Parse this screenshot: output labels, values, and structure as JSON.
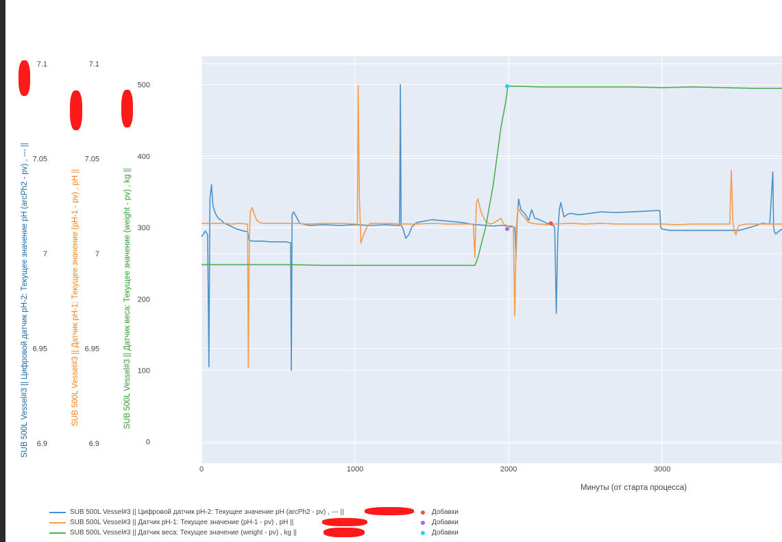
{
  "chart_data": {
    "type": "line",
    "xlabel": "Минуты (от старта процесса)",
    "xlim": [
      0,
      3780
    ],
    "x_ticks": [
      "0",
      "1000",
      "2000",
      "3000"
    ],
    "x_tick_values": [
      0,
      1000,
      2000,
      3000
    ],
    "axes": {
      "ph2": {
        "label": "SUB 500L Vessel#3 || Цифровой датчик pH-2: Текущее значение pH (arcPh2 - pv) , --- ||",
        "color": "#1f6aa5",
        "range": [
          6.9,
          7.1
        ],
        "ticks": [
          "7.1",
          "7.05",
          "7",
          "6.95",
          "6.9"
        ],
        "tick_values": [
          7.1,
          7.05,
          7.0,
          6.95,
          6.9
        ]
      },
      "ph1": {
        "label": "SUB 500L Vessel#3 || Датчик pH-1: Текущее значение (pH-1 - pv) , pH ||",
        "color": "#ff7f0e",
        "range": [
          6.9,
          7.1
        ],
        "ticks": [
          "7.1",
          "7.05",
          "7",
          "6.95",
          "6.9"
        ],
        "tick_values": [
          7.1,
          7.05,
          7.0,
          6.95,
          6.9
        ]
      },
      "weight": {
        "label": "SUB 500L Vessel#3 || Датчик веса: Текущее значение (weight - pv) , kg ||",
        "color": "#2ca02c",
        "range": [
          -30,
          540
        ],
        "ticks": [
          "500",
          "400",
          "300",
          "200",
          "100",
          "0"
        ],
        "tick_values": [
          500,
          400,
          300,
          200,
          100,
          0
        ]
      }
    },
    "series": [
      {
        "name": "SUB 500L Vessel#3 || Цифровой датчик pH-2: Текущее значение pH (arcPh2 - pv) , --- ||",
        "axis": "weight",
        "color": "#4b91c6",
        "x": [
          0,
          25,
          40,
          48,
          55,
          65,
          75,
          90,
          100,
          110,
          130,
          150,
          180,
          200,
          230,
          260,
          300,
          310,
          340,
          400,
          450,
          500,
          550,
          570,
          580,
          585,
          590,
          600,
          610,
          640,
          700,
          800,
          900,
          1000,
          1100,
          1200,
          1280,
          1290,
          1295,
          1300,
          1310,
          1330,
          1350,
          1370,
          1400,
          1500,
          1600,
          1700,
          1780,
          1800,
          1850,
          1900,
          1950,
          2000,
          2020,
          2040,
          2048,
          2055,
          2065,
          2080,
          2095,
          2110,
          2130,
          2150,
          2170,
          2190,
          2210,
          2230,
          2250,
          2270,
          2290,
          2300,
          2310,
          2320,
          2330,
          2340,
          2360,
          2380,
          2400,
          2450,
          2500,
          2600,
          2700,
          2800,
          2900,
          2980,
          2985,
          2990,
          3000,
          3050,
          3100,
          3200,
          3300,
          3400,
          3500,
          3600,
          3650,
          3700,
          3720,
          3725,
          3730,
          3740,
          3755,
          3780
        ],
        "y": [
          287,
          295,
          290,
          105,
          340,
          360,
          330,
          320,
          316,
          313,
          310,
          306,
          303,
          301,
          298,
          296,
          294,
          282,
          281,
          281,
          280,
          280,
          280,
          279,
          279,
          100,
          318,
          322,
          318,
          306,
          303,
          304,
          303,
          304,
          303,
          304,
          303,
          303,
          500,
          303,
          300,
          285,
          290,
          301,
          307,
          311,
          309,
          307,
          304,
          304,
          303,
          302,
          303,
          302,
          302,
          300,
          258,
          310,
          340,
          325,
          322,
          318,
          310,
          325,
          313,
          312,
          310,
          308,
          306,
          304,
          303,
          300,
          180,
          290,
          325,
          335,
          315,
          318,
          320,
          318,
          319,
          322,
          321,
          322,
          323,
          324,
          323,
          300,
          298,
          296,
          296,
          296,
          296,
          296,
          296,
          302,
          306,
          305,
          378,
          302,
          294,
          291,
          294,
          298
        ]
      },
      {
        "name": "SUB 500L Vessel#3 || Датчик pH-1: Текущее значение (pH-1 - pv) , pH ||",
        "axis": "weight",
        "color": "#f39c4a",
        "x": [
          0,
          50,
          100,
          150,
          200,
          250,
          290,
          300,
          305,
          312,
          318,
          330,
          345,
          360,
          380,
          400,
          500,
          600,
          700,
          800,
          900,
          1000,
          1015,
          1020,
          1028,
          1038,
          1050,
          1080,
          1100,
          1200,
          1300,
          1400,
          1500,
          1600,
          1700,
          1770,
          1780,
          1790,
          1800,
          1820,
          1850,
          1880,
          1900,
          1950,
          1970,
          1990,
          2000,
          2015,
          2030,
          2040,
          2050,
          2060,
          2080,
          2100,
          2130,
          2160,
          2180,
          2200,
          2250,
          2300,
          2400,
          2500,
          2600,
          2700,
          2800,
          2900,
          3000,
          3100,
          3200,
          3300,
          3400,
          3430,
          3440,
          3450,
          3460,
          3470,
          3480,
          3490,
          3500,
          3550,
          3600,
          3700,
          3780
        ],
        "y": [
          306,
          306,
          306,
          306,
          305,
          306,
          305,
          305,
          104,
          288,
          322,
          328,
          318,
          310,
          307,
          306,
          306,
          306,
          305,
          306,
          306,
          305,
          305,
          499,
          345,
          278,
          287,
          302,
          306,
          306,
          305,
          305,
          306,
          305,
          305,
          305,
          258,
          335,
          340,
          322,
          309,
          305,
          306,
          313,
          304,
          303,
          301,
          300,
          302,
          176,
          300,
          328,
          320,
          315,
          307,
          306,
          305,
          305,
          304,
          305,
          306,
          305,
          306,
          305,
          305,
          305,
          305,
          304,
          305,
          305,
          305,
          305,
          305,
          380,
          308,
          295,
          290,
          298,
          303,
          305,
          305,
          305,
          305
        ]
      },
      {
        "name": "SUB 500L Vessel#3 || Датчик веса: Текущее значение (weight - pv) , kg ||",
        "axis": "weight",
        "color": "#4caf50",
        "x": [
          0,
          200,
          400,
          600,
          800,
          1000,
          1200,
          1400,
          1600,
          1700,
          1780,
          1800,
          1850,
          1900,
          1950,
          1980,
          1995,
          2000,
          2050,
          2200,
          2400,
          2600,
          2800,
          3000,
          3200,
          3400,
          3600,
          3780
        ],
        "y": [
          248,
          248,
          248,
          248,
          247,
          247,
          247,
          247,
          247,
          247,
          247,
          258,
          300,
          360,
          440,
          475,
          497,
          498,
          498,
          497,
          497,
          497,
          497,
          496,
          497,
          496,
          495,
          495
        ]
      }
    ],
    "markers": [
      {
        "name": "Добавки",
        "color": "#ef553b",
        "x": 2275,
        "y": 306
      },
      {
        "name": "Добавки",
        "color": "#ab63fa",
        "x": 1990,
        "y": 298
      },
      {
        "name": "Добавки",
        "color": "#19d3f3",
        "x": 1990,
        "y": 498
      }
    ],
    "legend": {
      "placement": "bottom-left",
      "line_items": [
        "SUB 500L Vessel#3 || Цифровой датчик pH-2: Текущее значение pH (arcPh2 - pv) , --- ||",
        "SUB 500L Vessel#3 || Датчик pH-1: Текущее значение (pH-1 - pv) , pH ||",
        "SUB 500L Vessel#3 || Датчик веса: Текущее значение (weight - pv) , kg ||"
      ],
      "marker_items": [
        "Добавки",
        "Добавки",
        "Добавки"
      ]
    },
    "plot_background": "#e5ecf6",
    "grid": true
  }
}
